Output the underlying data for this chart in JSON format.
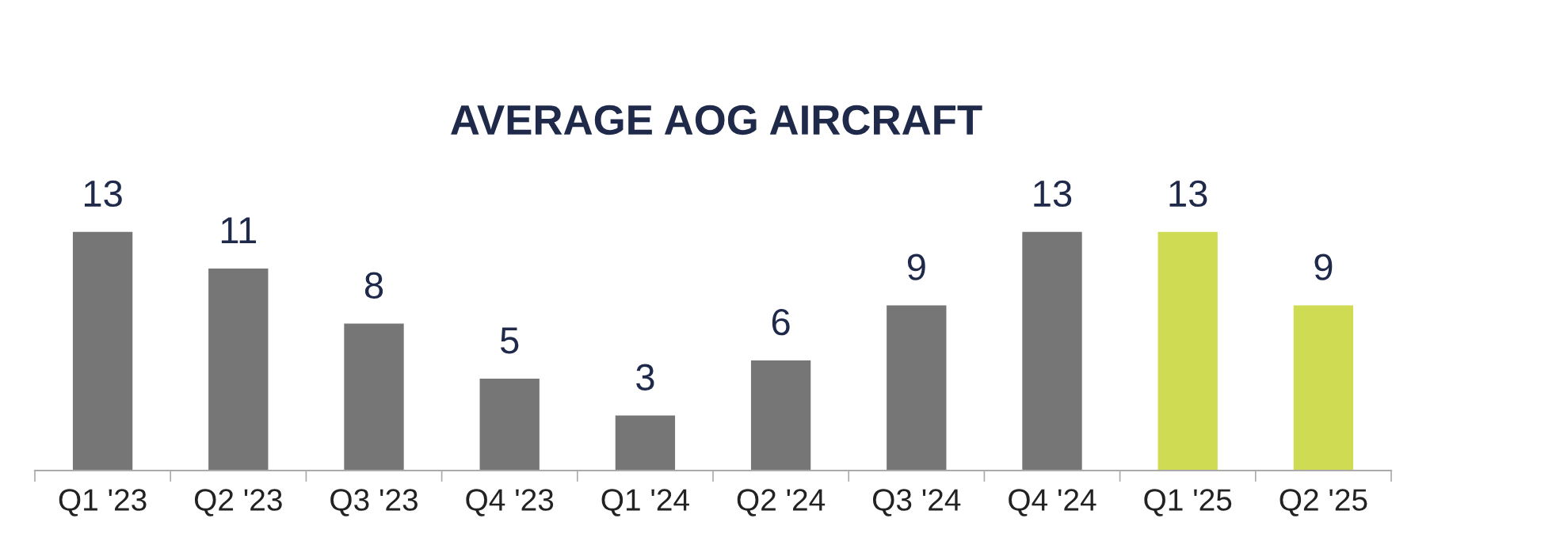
{
  "chart_data": {
    "type": "bar",
    "title": "AVERAGE AOG AIRCRAFT",
    "categories": [
      "Q1 '23",
      "Q2 '23",
      "Q3 '23",
      "Q4 '23",
      "Q1 '24",
      "Q2 '24",
      "Q3 '24",
      "Q4 '24",
      "Q1 '25",
      "Q2 '25"
    ],
    "values": [
      13,
      11,
      8,
      5,
      3,
      6,
      9,
      13,
      13,
      9
    ],
    "colors": [
      "#767676",
      "#767676",
      "#767676",
      "#767676",
      "#767676",
      "#767676",
      "#767676",
      "#767676",
      "#cfdb52",
      "#cfdb52"
    ],
    "data_labels": true,
    "grid": false,
    "legend": false
  }
}
